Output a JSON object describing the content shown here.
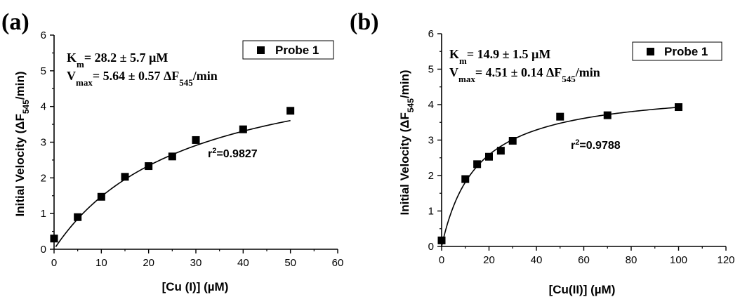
{
  "chart_data": [
    {
      "type": "scatter",
      "panel_label": "(a)",
      "xlabel": "[Cu (I)] (µM)",
      "ylabel_parts": [
        "Initial Velocity (ΔF",
        "545",
        "/min)"
      ],
      "xlim": [
        0,
        60
      ],
      "ylim": [
        0,
        6
      ],
      "xticks": [
        0,
        10,
        20,
        30,
        40,
        50,
        60
      ],
      "yticks": [
        0,
        1,
        2,
        3,
        4,
        5,
        6
      ],
      "grid": false,
      "legend_position": "top-right",
      "series": [
        {
          "name": "Probe 1",
          "marker": "square",
          "x": [
            0,
            5,
            10,
            15,
            20,
            25,
            30,
            40,
            50
          ],
          "y": [
            0.3,
            0.9,
            1.47,
            2.03,
            2.33,
            2.6,
            3.06,
            3.36,
            3.88
          ]
        }
      ],
      "fit": {
        "type": "michaelis-menten",
        "Vmax": 5.64,
        "Km": 28.2,
        "x0": 0.35,
        "x_end": 50
      },
      "annotations": {
        "km": {
          "sym": "K",
          "sub": "m",
          "text": "= 28.2 ± 5.7 µM"
        },
        "vmax": {
          "sym": "V",
          "sub": "max",
          "text_pre": "= 5.64 ± 0.57 ΔF",
          "text_sub": "545",
          "text_post": "/min"
        },
        "r2": {
          "pre": "r",
          "sup": "2",
          "text": "=0.9827"
        }
      }
    },
    {
      "type": "scatter",
      "panel_label": "(b)",
      "xlabel": "[Cu(II)] (µM)",
      "ylabel_parts": [
        "Initial Velocity (ΔF",
        "545",
        "/min)"
      ],
      "xlim": [
        0,
        120
      ],
      "ylim": [
        0,
        6
      ],
      "xticks": [
        0,
        20,
        40,
        60,
        80,
        100,
        120
      ],
      "yticks": [
        0,
        1,
        2,
        3,
        4,
        5,
        6
      ],
      "grid": false,
      "legend_position": "top-right",
      "series": [
        {
          "name": "Probe 1",
          "marker": "square",
          "x": [
            0,
            10,
            15,
            20,
            25,
            30,
            50,
            70,
            100
          ],
          "y": [
            0.17,
            1.9,
            2.32,
            2.53,
            2.7,
            2.98,
            3.66,
            3.7,
            3.93
          ]
        }
      ],
      "fit": {
        "type": "michaelis-menten",
        "Vmax": 4.51,
        "Km": 14.9,
        "x0": 0,
        "x_end": 100
      },
      "annotations": {
        "km": {
          "sym": "K",
          "sub": "m",
          "text": "= 14.9 ± 1.5 µM"
        },
        "vmax": {
          "sym": "V",
          "sub": "max",
          "text_pre": "= 4.51 ± 0.14 ΔF",
          "text_sub": "545",
          "text_post": "/min"
        },
        "r2": {
          "pre": "r",
          "sup": "2",
          "text": "=0.9788"
        }
      }
    }
  ]
}
